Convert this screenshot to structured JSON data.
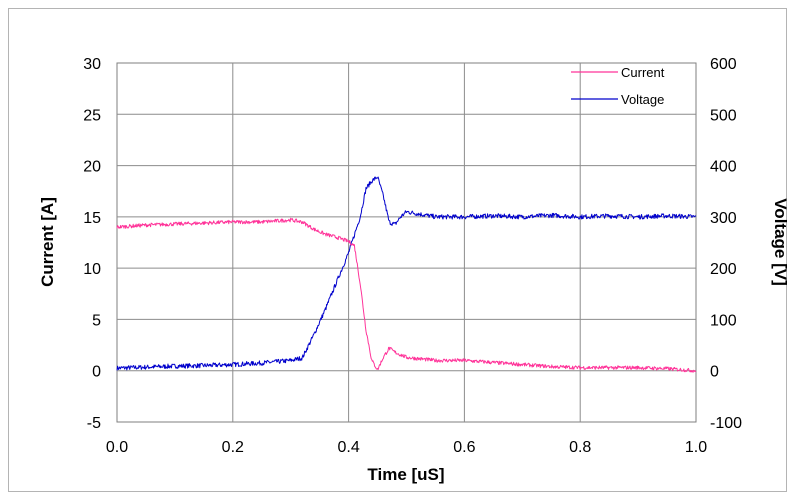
{
  "chart_data": {
    "type": "line",
    "xlabel": "Time [uS]",
    "ylabel_left": "Current [A]",
    "ylabel_right": "Voltage [V]",
    "xlim": [
      0.0,
      1.0
    ],
    "ylim_left": [
      -5,
      30
    ],
    "ylim_right": [
      -100,
      600
    ],
    "x_ticks": [
      "0.0",
      "0.2",
      "0.4",
      "0.6",
      "0.8",
      "1.0"
    ],
    "y_left_ticks": [
      "-5",
      "0",
      "5",
      "10",
      "15",
      "20",
      "25",
      "30"
    ],
    "y_right_ticks": [
      "-100",
      "0",
      "100",
      "200",
      "300",
      "400",
      "500",
      "600"
    ],
    "grid": true,
    "legend_position": "top-right",
    "series": [
      {
        "name": "Current",
        "axis": "left",
        "color": "#ff3399",
        "x": [
          0.0,
          0.05,
          0.1,
          0.15,
          0.2,
          0.25,
          0.3,
          0.32,
          0.34,
          0.36,
          0.38,
          0.4,
          0.41,
          0.42,
          0.43,
          0.44,
          0.45,
          0.46,
          0.47,
          0.48,
          0.5,
          0.55,
          0.6,
          0.65,
          0.7,
          0.75,
          0.8,
          0.85,
          0.9,
          0.95,
          1.0
        ],
        "y": [
          14.0,
          14.2,
          14.3,
          14.4,
          14.5,
          14.5,
          14.7,
          14.5,
          13.8,
          13.3,
          13.0,
          12.6,
          12.2,
          8.5,
          4.0,
          1.0,
          0.1,
          1.3,
          2.2,
          1.8,
          1.3,
          1.0,
          1.0,
          0.8,
          0.6,
          0.4,
          0.3,
          0.3,
          0.3,
          0.2,
          0.0
        ]
      },
      {
        "name": "Voltage",
        "axis": "right",
        "color": "#0000cc",
        "x": [
          0.0,
          0.05,
          0.1,
          0.15,
          0.2,
          0.25,
          0.3,
          0.32,
          0.34,
          0.36,
          0.38,
          0.4,
          0.42,
          0.43,
          0.44,
          0.45,
          0.46,
          0.47,
          0.48,
          0.49,
          0.5,
          0.55,
          0.6,
          0.65,
          0.7,
          0.75,
          0.8,
          0.85,
          0.9,
          0.95,
          1.0
        ],
        "y": [
          5,
          7,
          9,
          10,
          12,
          15,
          20,
          25,
          70,
          120,
          175,
          230,
          300,
          355,
          370,
          378,
          340,
          290,
          285,
          300,
          310,
          300,
          300,
          302,
          300,
          303,
          300,
          302,
          300,
          302,
          300
        ]
      }
    ]
  }
}
